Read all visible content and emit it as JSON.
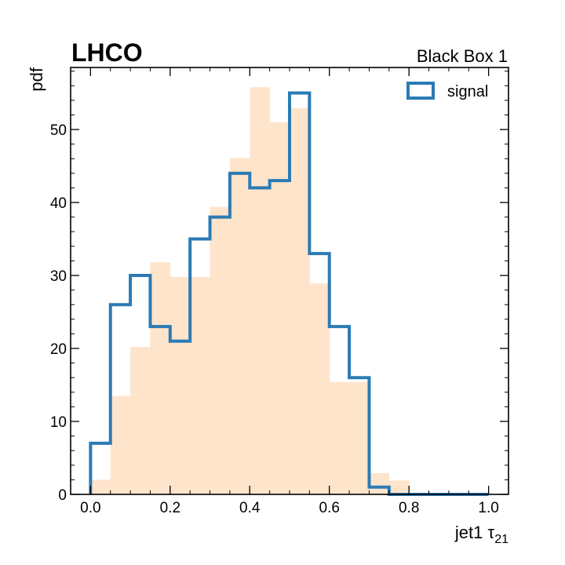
{
  "chart_data": {
    "type": "histogram",
    "experiment_label": "LHCO",
    "right_label": "Black Box 1",
    "xlabel": "jet1 τ",
    "xlabel_sub": "21",
    "ylabel": "pdf",
    "xlim": [
      -0.05,
      1.05
    ],
    "ylim": [
      0,
      58.5
    ],
    "xticks": [
      0.0,
      0.2,
      0.4,
      0.6,
      0.8,
      1.0
    ],
    "xtick_labels": [
      "0.0",
      "0.2",
      "0.4",
      "0.6",
      "0.8",
      "1.0"
    ],
    "yticks": [
      0,
      10,
      20,
      30,
      40,
      50
    ],
    "ytick_labels": [
      "0",
      "10",
      "20",
      "30",
      "40",
      "50"
    ],
    "bin_edges": [
      0.0,
      0.05,
      0.1,
      0.15,
      0.2,
      0.25,
      0.3,
      0.35,
      0.4,
      0.45,
      0.5,
      0.55,
      0.6,
      0.65,
      0.7,
      0.75,
      0.8,
      0.85,
      0.9,
      0.95,
      1.0
    ],
    "series": [
      {
        "style": "filled",
        "color": "#ffe4cc",
        "values": [
          2.0,
          13.5,
          20.2,
          31.8,
          29.8,
          29.8,
          39.4,
          46.1,
          55.8,
          51.0,
          52.9,
          28.9,
          15.4,
          15.4,
          2.9,
          1.9,
          0.2,
          0.0,
          0.0,
          0.0
        ]
      },
      {
        "name": "signal",
        "style": "step",
        "color": "#2b7bb4",
        "values": [
          7.0,
          26.0,
          30.0,
          23.0,
          21.0,
          35.0,
          38.0,
          44.0,
          42.0,
          43.0,
          55.0,
          33.0,
          23.0,
          16.0,
          1.0,
          0.0,
          0.0,
          0.0,
          0.0,
          0.0
        ]
      }
    ],
    "legend_position": "top-right",
    "grid": false
  }
}
